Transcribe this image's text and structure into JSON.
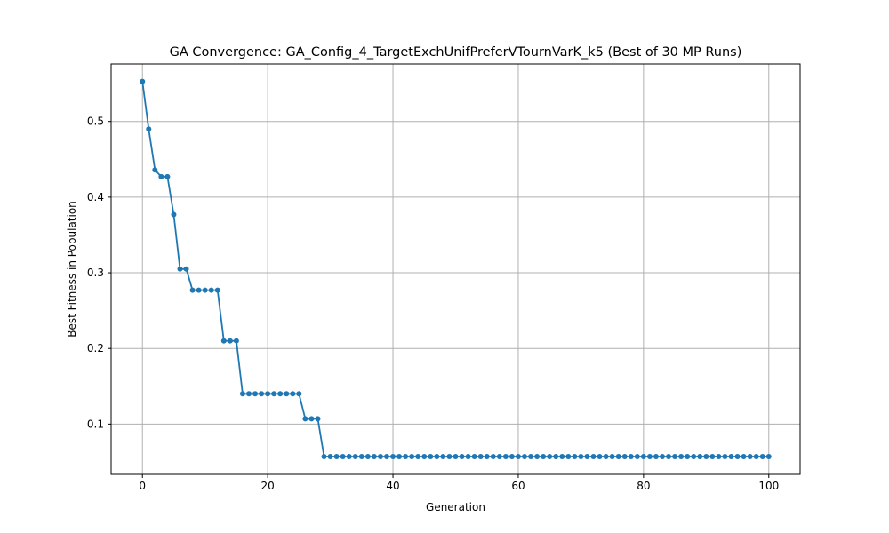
{
  "chart_data": {
    "type": "line",
    "title": "GA Convergence: GA_Config_4_TargetExchUnifPreferVTournVarK_k5 (Best of 30 MP Runs)",
    "xlabel": "Generation",
    "ylabel": "Best Fitness in Population",
    "xlim": [
      -5,
      105
    ],
    "ylim": [
      0.0335,
      0.576
    ],
    "xticks": [
      0,
      20,
      40,
      60,
      80,
      100
    ],
    "yticks": [
      0.1,
      0.2,
      0.3,
      0.4,
      0.5
    ],
    "xtick_labels": [
      "0",
      "20",
      "40",
      "60",
      "80",
      "100"
    ],
    "ytick_labels": [
      "0.1",
      "0.2",
      "0.3",
      "0.4",
      "0.5"
    ],
    "grid": true,
    "marker": "circle",
    "color": "#1f77b4",
    "series": [
      {
        "x": [
          0,
          1,
          2,
          3,
          4,
          5,
          6,
          7,
          8,
          9,
          10,
          11,
          12,
          13,
          14,
          15,
          16,
          17,
          18,
          19,
          20,
          21,
          22,
          23,
          24,
          25,
          26,
          27,
          28,
          29,
          30,
          31,
          32,
          33,
          34,
          35,
          36,
          37,
          38,
          39,
          40,
          41,
          42,
          43,
          44,
          45,
          46,
          47,
          48,
          49,
          50,
          51,
          52,
          53,
          54,
          55,
          56,
          57,
          58,
          59,
          60,
          61,
          62,
          63,
          64,
          65,
          66,
          67,
          68,
          69,
          70,
          71,
          72,
          73,
          74,
          75,
          76,
          77,
          78,
          79,
          80,
          81,
          82,
          83,
          84,
          85,
          86,
          87,
          88,
          89,
          90,
          91,
          92,
          93,
          94,
          95,
          96,
          97,
          98,
          99,
          100
        ],
        "values": [
          0.553,
          0.49,
          0.436,
          0.427,
          0.427,
          0.377,
          0.305,
          0.305,
          0.277,
          0.277,
          0.277,
          0.277,
          0.277,
          0.21,
          0.21,
          0.21,
          0.14,
          0.14,
          0.14,
          0.14,
          0.14,
          0.14,
          0.14,
          0.14,
          0.14,
          0.14,
          0.107,
          0.107,
          0.107,
          0.057,
          0.057,
          0.057,
          0.057,
          0.057,
          0.057,
          0.057,
          0.057,
          0.057,
          0.057,
          0.057,
          0.057,
          0.057,
          0.057,
          0.057,
          0.057,
          0.057,
          0.057,
          0.057,
          0.057,
          0.057,
          0.057,
          0.057,
          0.057,
          0.057,
          0.057,
          0.057,
          0.057,
          0.057,
          0.057,
          0.057,
          0.057,
          0.057,
          0.057,
          0.057,
          0.057,
          0.057,
          0.057,
          0.057,
          0.057,
          0.057,
          0.057,
          0.057,
          0.057,
          0.057,
          0.057,
          0.057,
          0.057,
          0.057,
          0.057,
          0.057,
          0.057,
          0.057,
          0.057,
          0.057,
          0.057,
          0.057,
          0.057,
          0.057,
          0.057,
          0.057,
          0.057,
          0.057,
          0.057,
          0.057,
          0.057,
          0.057,
          0.057,
          0.057,
          0.057,
          0.057,
          0.057
        ]
      }
    ]
  }
}
